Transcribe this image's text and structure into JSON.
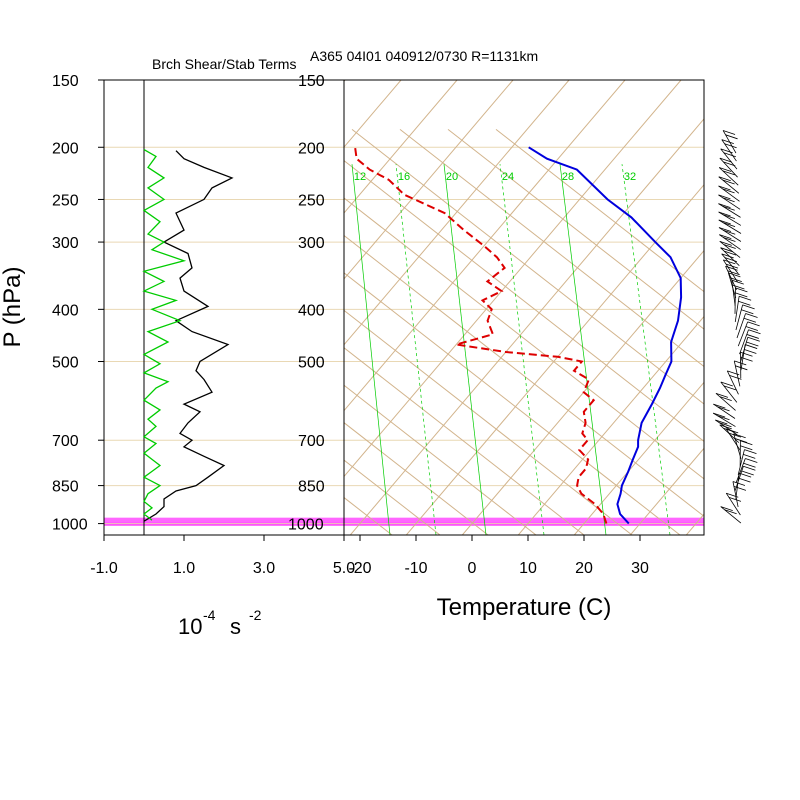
{
  "header": {
    "left_title": "Brch Shear/Stab Terms",
    "right_title": "A365 04I01 040912/0730 R=1131km"
  },
  "axes": {
    "ylabel": "P (hPa)",
    "left_xlabel": "10",
    "left_xlabel_exp": "-4",
    "left_xlabel_unit": "s",
    "left_xlabel_unit_exp": "-2",
    "right_xlabel": "Temperature (C)"
  },
  "colors": {
    "isotherm_skew": "#d2b48c",
    "pressure_line": "#e9d8b4",
    "mixing_ratio": "#00cc00",
    "temperature": "#0000dd",
    "dewpoint": "#dd0000",
    "highlight": "#ff00ff",
    "ri_shear": "#000000",
    "ri_stab": "#00cc00",
    "barb": "#000000"
  },
  "chart_data": [
    {
      "type": "line",
      "title": "Brch Shear/Stab Terms",
      "ylabel": "P (hPa)",
      "xlabel": "10^-4 s^-2",
      "y_scale": "log",
      "ylim": [
        1050,
        150
      ],
      "xlim": [
        -1.0,
        5.0
      ],
      "xticks": [
        "-1.0",
        "1.0",
        "3.0",
        "5.0"
      ],
      "yticks": [
        150,
        200,
        250,
        300,
        400,
        500,
        700,
        850,
        1000
      ],
      "zero_line": 0.0,
      "series": [
        {
          "color": "#000000",
          "points": [
            [
              0.0,
              990
            ],
            [
              0.3,
              960
            ],
            [
              0.5,
              930
            ],
            [
              0.5,
              900
            ],
            [
              0.8,
              870
            ],
            [
              1.3,
              850
            ],
            [
              1.6,
              820
            ],
            [
              2.0,
              780
            ],
            [
              1.5,
              750
            ],
            [
              1.0,
              720
            ],
            [
              1.2,
              700
            ],
            [
              0.9,
              680
            ],
            [
              1.1,
              650
            ],
            [
              1.4,
              620
            ],
            [
              1.0,
              600
            ],
            [
              1.7,
              570
            ],
            [
              1.5,
              540
            ],
            [
              1.3,
              520
            ],
            [
              1.4,
              500
            ],
            [
              2.1,
              465
            ],
            [
              1.2,
              440
            ],
            [
              0.8,
              420
            ],
            [
              1.6,
              395
            ],
            [
              1.0,
              370
            ],
            [
              0.9,
              350
            ],
            [
              1.2,
              335
            ],
            [
              1.1,
              315
            ],
            [
              0.5,
              300
            ],
            [
              1.0,
              285
            ],
            [
              0.8,
              265
            ],
            [
              1.5,
              250
            ],
            [
              1.7,
              238
            ],
            [
              2.2,
              228
            ],
            [
              1.5,
              218
            ],
            [
              1.0,
              210
            ],
            [
              0.8,
              203
            ]
          ]
        },
        {
          "color": "#00cc00",
          "points": [
            [
              0.2,
              985
            ],
            [
              0.0,
              960
            ],
            [
              0.2,
              935
            ],
            [
              0.0,
              910
            ],
            [
              0.1,
              880
            ],
            [
              0.4,
              850
            ],
            [
              0.0,
              820
            ],
            [
              0.2,
              800
            ],
            [
              0.4,
              780
            ],
            [
              0.2,
              760
            ],
            [
              0.0,
              740
            ],
            [
              0.3,
              710
            ],
            [
              0.0,
              690
            ],
            [
              0.3,
              660
            ],
            [
              0.1,
              640
            ],
            [
              0.4,
              615
            ],
            [
              0.0,
              590
            ],
            [
              0.3,
              560
            ],
            [
              0.6,
              545
            ],
            [
              0.0,
              525
            ],
            [
              0.4,
              505
            ],
            [
              0.0,
              485
            ],
            [
              0.6,
              460
            ],
            [
              0.1,
              440
            ],
            [
              0.9,
              420
            ],
            [
              0.2,
              400
            ],
            [
              0.8,
              385
            ],
            [
              0.0,
              370
            ],
            [
              0.5,
              355
            ],
            [
              0.0,
              340
            ],
            [
              1.0,
              325
            ],
            [
              0.2,
              310
            ],
            [
              0.5,
              300
            ],
            [
              0.1,
              290
            ],
            [
              0.4,
              275
            ],
            [
              0.0,
              262
            ],
            [
              0.5,
              250
            ],
            [
              0.1,
              238
            ],
            [
              0.5,
              228
            ],
            [
              0.1,
              218
            ],
            [
              0.3,
              208
            ],
            [
              0.0,
              202
            ]
          ]
        }
      ]
    },
    {
      "type": "line",
      "title": "A365 04I01 040912/0730 R=1131km",
      "xlabel": "Temperature (C)",
      "ylabel": "P (hPa)",
      "y_scale": "log",
      "skewed": true,
      "ylim": [
        1050,
        150
      ],
      "xlim": [
        -23,
        41
      ],
      "xticks": [
        -20,
        -10,
        0,
        10,
        20,
        30
      ],
      "yticks": [
        150,
        200,
        250,
        300,
        400,
        500,
        700,
        850,
        1000
      ],
      "highlight_band_hPa": [
        1010,
        975
      ],
      "mixing_ratio_labels": [
        "12",
        "16",
        "20",
        "24",
        "28",
        "32"
      ],
      "series": [
        {
          "name": "Temperature",
          "color": "#0000dd",
          "style": "solid",
          "points": [
            [
              28,
              1000
            ],
            [
              25,
              960
            ],
            [
              23,
              920
            ],
            [
              22,
              880
            ],
            [
              21,
              850
            ],
            [
              20,
              800
            ],
            [
              19,
              760
            ],
            [
              18,
              720
            ],
            [
              17,
              700
            ],
            [
              15,
              650
            ],
            [
              14,
              600
            ],
            [
              13,
              560
            ],
            [
              12,
              530
            ],
            [
              11,
              500
            ],
            [
              8,
              460
            ],
            [
              6,
              420
            ],
            [
              3,
              380
            ],
            [
              0,
              350
            ],
            [
              -5,
              320
            ],
            [
              -10,
              300
            ],
            [
              -18,
              270
            ],
            [
              -25,
              250
            ],
            [
              -35,
              220
            ],
            [
              -42,
              210
            ],
            [
              -47,
              200
            ]
          ]
        },
        {
          "name": "Dewpoint",
          "color": "#dd0000",
          "style": "dashed",
          "points": [
            [
              24,
              1000
            ],
            [
              22,
              960
            ],
            [
              19,
              920
            ],
            [
              15,
              880
            ],
            [
              13,
              850
            ],
            [
              12,
              820
            ],
            [
              12,
              790
            ],
            [
              11,
              760
            ],
            [
              8,
              730
            ],
            [
              8,
              700
            ],
            [
              6,
              680
            ],
            [
              5,
              650
            ],
            [
              3,
              620
            ],
            [
              3,
              590
            ],
            [
              0,
              570
            ],
            [
              -1,
              540
            ],
            [
              -5,
              520
            ],
            [
              -5,
              500
            ],
            [
              -10,
              490
            ],
            [
              -20,
              480
            ],
            [
              -30,
              465
            ],
            [
              -25,
              445
            ],
            [
              -28,
              420
            ],
            [
              -29,
              400
            ],
            [
              -32,
              385
            ],
            [
              -30,
              370
            ],
            [
              -34,
              355
            ],
            [
              -33,
              335
            ],
            [
              -36,
              320
            ],
            [
              -40,
              305
            ],
            [
              -46,
              285
            ],
            [
              -52,
              265
            ],
            [
              -62,
              245
            ],
            [
              -67,
              230
            ],
            [
              -72,
              220
            ],
            [
              -76,
              210
            ],
            [
              -78,
              200
            ]
          ]
        }
      ]
    }
  ]
}
